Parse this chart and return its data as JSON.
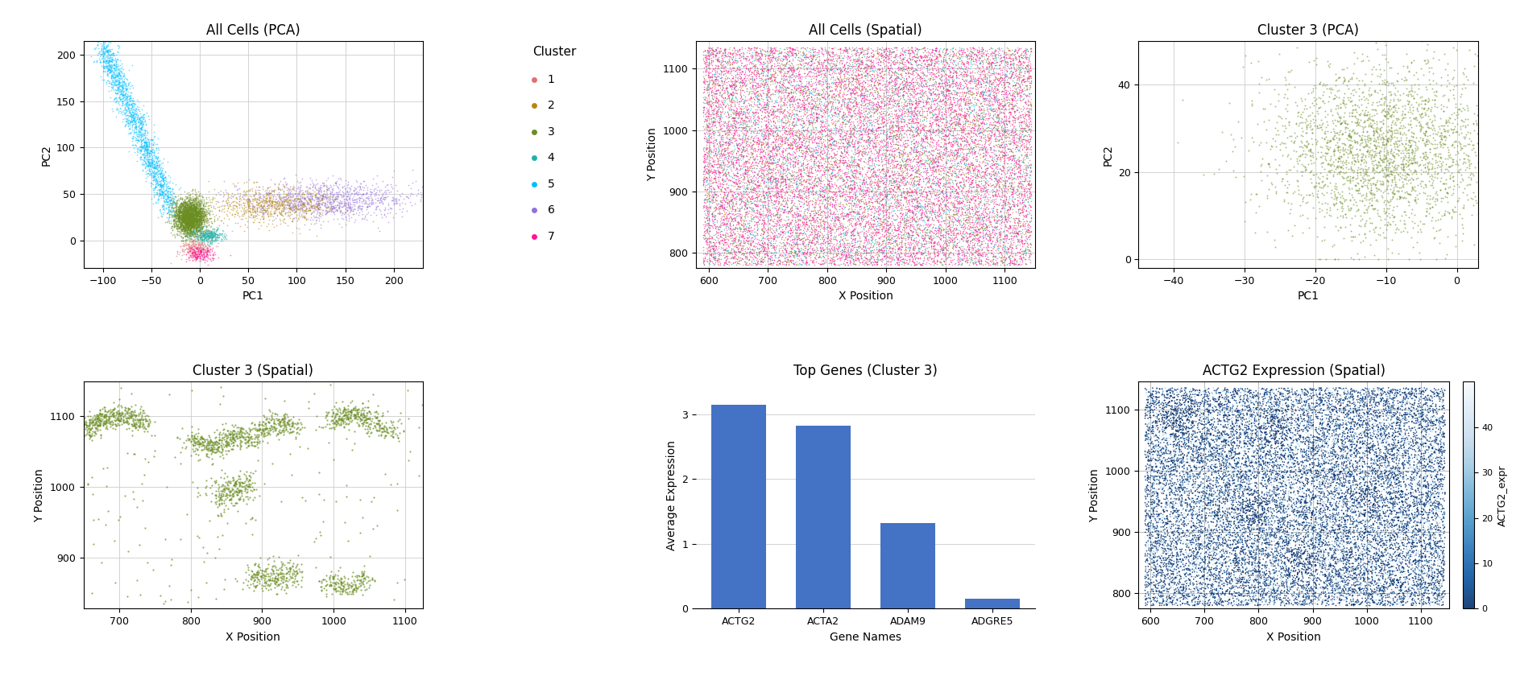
{
  "cluster_colors": {
    "1": "#E07070",
    "2": "#B8860B",
    "3": "#6B8E23",
    "4": "#20B2AA",
    "5": "#00BFFF",
    "6": "#9370DB",
    "7": "#FF1493"
  },
  "pca_all_title": "All Cells (PCA)",
  "pca_all_xlabel": "PC1",
  "pca_all_ylabel": "PC2",
  "pca_all_xlim": [
    -120,
    230
  ],
  "pca_all_ylim": [
    -30,
    215
  ],
  "spatial_all_title": "All Cells (Spatial)",
  "spatial_all_xlabel": "X Position",
  "spatial_all_ylabel": "Y Position",
  "spatial_all_xlim": [
    578,
    1152
  ],
  "spatial_all_ylim": [
    775,
    1145
  ],
  "pca_cluster_title": "Cluster 3 (PCA)",
  "pca_cluster_xlabel": "PC1",
  "pca_cluster_ylabel": "PC2",
  "pca_cluster_xlim": [
    -45,
    3
  ],
  "pca_cluster_ylim": [
    -2,
    50
  ],
  "spatial_cluster_title": "Cluster 3 (Spatial)",
  "spatial_cluster_xlabel": "X Position",
  "spatial_cluster_ylabel": "Y Position",
  "spatial_cluster_xlim": [
    650,
    1125
  ],
  "spatial_cluster_ylim": [
    828,
    1148
  ],
  "bar_title": "Top Genes (Cluster 3)",
  "bar_xlabel": "Gene Names",
  "bar_ylabel": "Average Expression",
  "bar_genes": [
    "ACTG2",
    "ACTA2",
    "ADAM9",
    "ADGRE5"
  ],
  "bar_values": [
    3.15,
    2.82,
    1.32,
    0.15
  ],
  "bar_color": "#4472C4",
  "expr_title": "ACTG2 Expression (Spatial)",
  "expr_xlabel": "X Position",
  "expr_ylabel": "Y Position",
  "expr_xlim": [
    578,
    1152
  ],
  "expr_ylim": [
    775,
    1145
  ],
  "expr_cbar_label": "ACTG2_expr",
  "expr_cbar_ticks": [
    0,
    10,
    20,
    30,
    40
  ],
  "legend_title": "Cluster"
}
